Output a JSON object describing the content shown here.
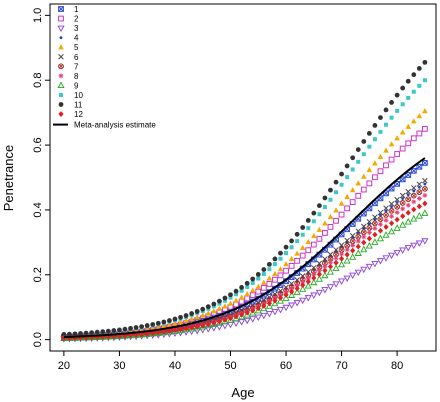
{
  "chart_data": {
    "type": "scatter",
    "title": "",
    "xlabel": "Age",
    "ylabel": "Penetrance",
    "xlim": [
      17.5,
      87
    ],
    "ylim": [
      -0.035,
      1.035
    ],
    "x_ticks": [
      20,
      30,
      40,
      50,
      60,
      70,
      80
    ],
    "y_ticks": [
      0.0,
      0.2,
      0.4,
      0.6,
      0.8,
      1.0
    ],
    "grid": false,
    "legend_position": "top-left",
    "x_start": 20,
    "x_end": 85,
    "x_step": 1,
    "series": [
      {
        "name": "1",
        "marker": "square-x",
        "color": "#2b4bd6",
        "start": 0.008,
        "end": 0.545
      },
      {
        "name": "2",
        "marker": "square-open",
        "color": "#cc33cc",
        "start": 0.006,
        "end": 0.65
      },
      {
        "name": "3",
        "marker": "tri-down",
        "color": "#8a3ee0",
        "start": 0.003,
        "end": 0.305
      },
      {
        "name": "4",
        "marker": "dot-small",
        "color": "#1f3fbf",
        "start": 0.006,
        "end": 0.48
      },
      {
        "name": "5",
        "marker": "tri-up",
        "color": "#f2a900",
        "start": 0.01,
        "end": 0.705
      },
      {
        "name": "6",
        "marker": "x",
        "color": "#444444",
        "start": 0.006,
        "end": 0.49
      },
      {
        "name": "7",
        "marker": "circle-x",
        "color": "#a0302a",
        "start": 0.005,
        "end": 0.465
      },
      {
        "name": "8",
        "marker": "star",
        "color": "#e8417a",
        "start": 0.005,
        "end": 0.445
      },
      {
        "name": "9",
        "marker": "tri-open",
        "color": "#22aa22",
        "start": 0.004,
        "end": 0.39
      },
      {
        "name": "10",
        "marker": "square",
        "color": "#3cc8c8",
        "start": 0.015,
        "end": 0.8
      },
      {
        "name": "11",
        "marker": "circle",
        "color": "#333333",
        "start": 0.016,
        "end": 0.855
      },
      {
        "name": "12",
        "marker": "diamond",
        "color": "#e02020",
        "start": 0.005,
        "end": 0.42
      }
    ],
    "meta_line": {
      "name": "Meta-analysis estimate",
      "color": "#000000",
      "start": 0.008,
      "end": 0.56
    }
  }
}
